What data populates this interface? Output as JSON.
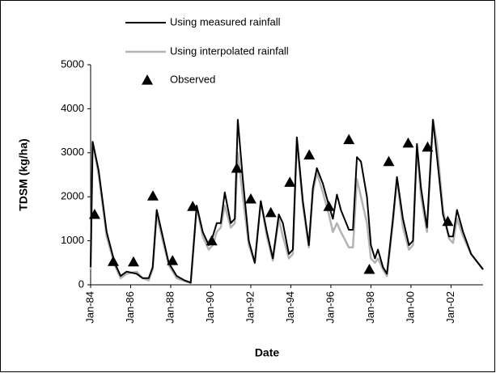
{
  "chart_data": {
    "type": "line",
    "ylabel": "TDSM (kg/ha)",
    "xlabel": "Date",
    "x": [
      1984.0,
      1984.1,
      1984.4,
      1984.8,
      1985.2,
      1985.5,
      1985.8,
      1986.3,
      1986.6,
      1986.9,
      1987.1,
      1987.3,
      1987.6,
      1987.9,
      1988.3,
      1988.7,
      1989.0,
      1989.3,
      1989.6,
      1989.9,
      1990.1,
      1990.3,
      1990.5,
      1990.7,
      1991.0,
      1991.2,
      1991.35,
      1991.6,
      1991.9,
      1992.2,
      1992.5,
      1992.8,
      1993.1,
      1993.4,
      1993.6,
      1993.9,
      1994.1,
      1994.3,
      1994.6,
      1994.9,
      1995.1,
      1995.3,
      1995.6,
      1995.9,
      1996.1,
      1996.3,
      1996.5,
      1996.9,
      1997.1,
      1997.3,
      1997.5,
      1997.8,
      1998.0,
      1998.2,
      1998.35,
      1998.6,
      1998.8,
      1999.1,
      1999.3,
      1999.6,
      1999.9,
      2000.1,
      2000.3,
      2000.5,
      2000.8,
      2001.1,
      2001.3,
      2001.6,
      2001.9,
      2002.1,
      2002.3,
      2002.6,
      2003.0,
      2003.6
    ],
    "series": [
      {
        "name": "Using measured rainfall",
        "color": "#000000",
        "width": 2,
        "values": [
          400,
          3250,
          2600,
          1200,
          500,
          200,
          300,
          250,
          150,
          150,
          400,
          1700,
          1100,
          500,
          200,
          100,
          50,
          1800,
          1200,
          900,
          1100,
          1400,
          1400,
          2100,
          1400,
          1500,
          3750,
          2400,
          1000,
          500,
          1900,
          1200,
          600,
          1600,
          1400,
          700,
          800,
          3350,
          1900,
          900,
          2200,
          2650,
          2300,
          1800,
          1500,
          2050,
          1700,
          1250,
          1250,
          2900,
          2800,
          2000,
          900,
          600,
          800,
          400,
          250,
          1500,
          2450,
          1500,
          900,
          1000,
          3200,
          2200,
          1300,
          3750,
          2900,
          1600,
          1100,
          1100,
          1700,
          1200,
          700,
          350
        ]
      },
      {
        "name": "Using interpolated rainfall",
        "color": "#b3b3b3",
        "width": 2.5,
        "values": [
          350,
          3250,
          2500,
          1100,
          450,
          150,
          250,
          300,
          150,
          100,
          350,
          1600,
          1000,
          450,
          150,
          80,
          40,
          1750,
          1100,
          800,
          900,
          1200,
          1300,
          1800,
          1300,
          1400,
          3000,
          2000,
          900,
          500,
          1900,
          1100,
          550,
          1500,
          1100,
          600,
          700,
          3300,
          1800,
          850,
          2100,
          2550,
          2100,
          1600,
          1200,
          1400,
          1200,
          850,
          850,
          2400,
          2000,
          1400,
          600,
          500,
          600,
          350,
          200,
          1400,
          2400,
          1300,
          800,
          900,
          3100,
          2000,
          1200,
          3750,
          3200,
          1700,
          1050,
          950,
          1500,
          1100,
          700,
          350
        ]
      },
      {
        "name": "Observed",
        "color": "#000000",
        "marker": "triangle",
        "x": [
          1984.2,
          1985.13,
          1986.14,
          1987.11,
          1988.09,
          1989.1,
          1990.05,
          1991.3,
          1992.0,
          1993.0,
          1993.95,
          1994.92,
          1995.9,
          1996.9,
          1997.92,
          1998.89,
          1999.86,
          2000.83,
          2001.84
        ],
        "values": [
          1600,
          530,
          520,
          2020,
          550,
          1780,
          1000,
          2650,
          1950,
          1640,
          2330,
          2950,
          1780,
          3300,
          350,
          2800,
          3220,
          3130,
          1440
        ]
      }
    ],
    "xlim": [
      1984,
      2003.6
    ],
    "xticks": [
      {
        "value": 1984,
        "label": "Jan-84"
      },
      {
        "value": 1986,
        "label": "Jan-86"
      },
      {
        "value": 1988,
        "label": "Jan-88"
      },
      {
        "value": 1990,
        "label": "Jan-90"
      },
      {
        "value": 1992,
        "label": "Jan-92"
      },
      {
        "value": 1994,
        "label": "Jan-94"
      },
      {
        "value": 1996,
        "label": "Jan-96"
      },
      {
        "value": 1998,
        "label": "Jan-98"
      },
      {
        "value": 2000,
        "label": "Jan-00"
      },
      {
        "value": 2002,
        "label": "Jan-02"
      }
    ],
    "ylim": [
      0,
      5000
    ],
    "yticks": [
      0,
      1000,
      2000,
      3000,
      4000,
      5000
    ],
    "grid": false,
    "legend": "top"
  }
}
